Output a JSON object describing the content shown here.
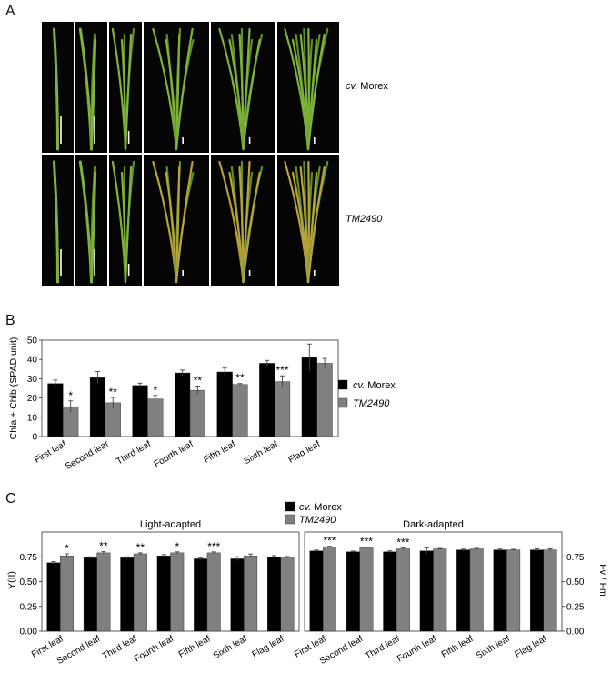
{
  "panels": {
    "a": "A",
    "b": "B",
    "c": "C"
  },
  "photos": {
    "row_labels": [
      {
        "prefix": "cv.",
        "name": "Morex"
      },
      {
        "prefix": "",
        "name": "TM2490"
      }
    ],
    "colors": {
      "background": "#050505",
      "leaf": "#7fb33a",
      "leaf_dark": "#5f8f28",
      "senescent": "#b8a33c"
    }
  },
  "legend": {
    "series": [
      {
        "prefix": "cv.",
        "name": "Morex",
        "color": "#000000"
      },
      {
        "prefix": "",
        "name": "TM2490",
        "color": "#808080"
      }
    ]
  },
  "chart_data": [
    {
      "id": "B",
      "type": "bar",
      "ylabel": "Chla + Chlb (SPAD unit)",
      "ylim": [
        0,
        50
      ],
      "yticks": [
        "0",
        "10",
        "20",
        "30",
        "40",
        "50"
      ],
      "categories": [
        "First leaf",
        "Second leaf",
        "Third leaf",
        "Fourth leaf",
        "Fifth leaf",
        "Sixth leaf",
        "Flag leaf"
      ],
      "series": [
        {
          "name": "cv. Morex",
          "color": "#000000",
          "values": [
            27.5,
            30.5,
            26.5,
            33,
            33.5,
            38,
            41
          ],
          "errors": [
            1.8,
            3.2,
            1.2,
            1.5,
            2.0,
            1.5,
            7.0
          ]
        },
        {
          "name": "TM2490",
          "color": "#808080",
          "values": [
            15.5,
            17.5,
            19.5,
            24,
            27,
            28.5,
            38
          ],
          "errors": [
            3.0,
            2.8,
            1.8,
            2.2,
            0.5,
            3.0,
            2.5
          ]
        }
      ],
      "significance": [
        "*",
        "**",
        "*",
        "**",
        "**",
        "***",
        ""
      ]
    },
    {
      "id": "C-light",
      "type": "bar",
      "title": "Light-adapted",
      "ylabel": "Y(II)",
      "ylim": [
        0,
        1
      ],
      "yticks": [
        "0.00",
        "0.25",
        "0.50",
        "0.75"
      ],
      "categories": [
        "First leaf",
        "Second leaf",
        "Third leaf",
        "Fourth leaf",
        "Fifth leaf",
        "Sixth leaf",
        "Flag leaf"
      ],
      "series": [
        {
          "name": "cv. Morex",
          "color": "#000000",
          "values": [
            0.69,
            0.74,
            0.74,
            0.76,
            0.73,
            0.73,
            0.75
          ],
          "errors": [
            0.012,
            0.01,
            0.01,
            0.012,
            0.01,
            0.02,
            0.012
          ]
        },
        {
          "name": "TM2490",
          "color": "#808080",
          "values": [
            0.76,
            0.79,
            0.78,
            0.79,
            0.79,
            0.76,
            0.745
          ],
          "errors": [
            0.02,
            0.012,
            0.01,
            0.01,
            0.01,
            0.018,
            0.008
          ]
        }
      ],
      "significance": [
        "*",
        "**",
        "**",
        "*",
        "***",
        "",
        ""
      ]
    },
    {
      "id": "C-dark",
      "type": "bar",
      "title": "Dark-adapted",
      "ylabel": "Fv / Fm",
      "ylim": [
        0,
        1
      ],
      "yticks": [
        "0.00",
        "0.25",
        "0.50",
        "0.75"
      ],
      "categories": [
        "First leaf",
        "Second leaf",
        "Third leaf",
        "Fourth leaf",
        "Fifth leaf",
        "Sixth leaf",
        "Flag leaf"
      ],
      "series": [
        {
          "name": "cv. Morex",
          "color": "#000000",
          "values": [
            0.81,
            0.8,
            0.8,
            0.81,
            0.82,
            0.82,
            0.82
          ],
          "errors": [
            0.008,
            0.008,
            0.01,
            0.03,
            0.008,
            0.008,
            0.01
          ]
        },
        {
          "name": "TM2490",
          "color": "#808080",
          "values": [
            0.85,
            0.84,
            0.83,
            0.83,
            0.83,
            0.82,
            0.82
          ],
          "errors": [
            0.006,
            0.008,
            0.008,
            0.005,
            0.006,
            0.006,
            0.01
          ]
        }
      ],
      "significance": [
        "***",
        "***",
        "***",
        "",
        "",
        "",
        ""
      ]
    }
  ]
}
